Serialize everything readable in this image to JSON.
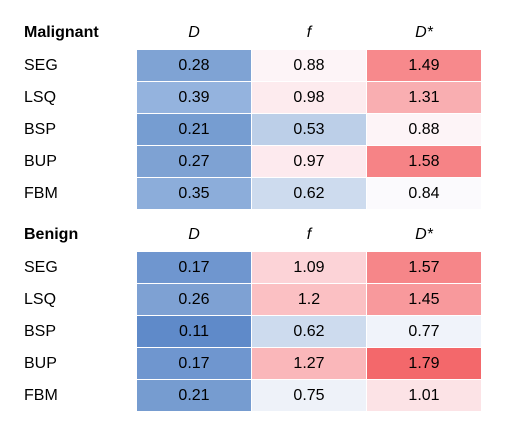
{
  "chart_data": {
    "type": "table",
    "columns": [
      "D",
      "f",
      "D*"
    ],
    "tables": [
      {
        "title": "Malignant",
        "rows": [
          {
            "label": "SEG",
            "values": [
              "0.28",
              "0.88",
              "1.49"
            ]
          },
          {
            "label": "LSQ",
            "values": [
              "0.39",
              "0.98",
              "1.31"
            ]
          },
          {
            "label": "BSP",
            "values": [
              "0.21",
              "0.53",
              "0.88"
            ]
          },
          {
            "label": "BUP",
            "values": [
              "0.27",
              "0.97",
              "1.58"
            ]
          },
          {
            "label": "FBM",
            "values": [
              "0.35",
              "0.62",
              "0.84"
            ]
          }
        ],
        "cell_colors": [
          [
            "#7fa3d4",
            "#fdf4f7",
            "#f7898c"
          ],
          [
            "#94b3de",
            "#fdebee",
            "#f9aeb1"
          ],
          [
            "#769dd1",
            "#bccfe8",
            "#fdf4f7"
          ],
          [
            "#7ea2d3",
            "#fdeaee",
            "#f68386"
          ],
          [
            "#8cadda",
            "#cddbee",
            "#fbfafd"
          ]
        ]
      },
      {
        "title": "Benign",
        "rows": [
          {
            "label": "SEG",
            "values": [
              "0.17",
              "1.09",
              "1.57"
            ]
          },
          {
            "label": "LSQ",
            "values": [
              "0.26",
              "1.2",
              "1.45"
            ]
          },
          {
            "label": "BSP",
            "values": [
              "0.11",
              "0.62",
              "0.77"
            ]
          },
          {
            "label": "BUP",
            "values": [
              "0.17",
              "1.27",
              "1.79"
            ]
          },
          {
            "label": "FBM",
            "values": [
              "0.21",
              "0.75",
              "1.01"
            ]
          }
        ],
        "cell_colors": [
          [
            "#6f96cf",
            "#fcd3d7",
            "#f68689"
          ],
          [
            "#7ea1d3",
            "#fbc0c3",
            "#f8999c"
          ],
          [
            "#5f8ac9",
            "#cddbee",
            "#f0f3fa"
          ],
          [
            "#6f96cf",
            "#fab7ba",
            "#f3686b"
          ],
          [
            "#769cd0",
            "#eef2f9",
            "#fce3e6"
          ]
        ]
      }
    ]
  }
}
